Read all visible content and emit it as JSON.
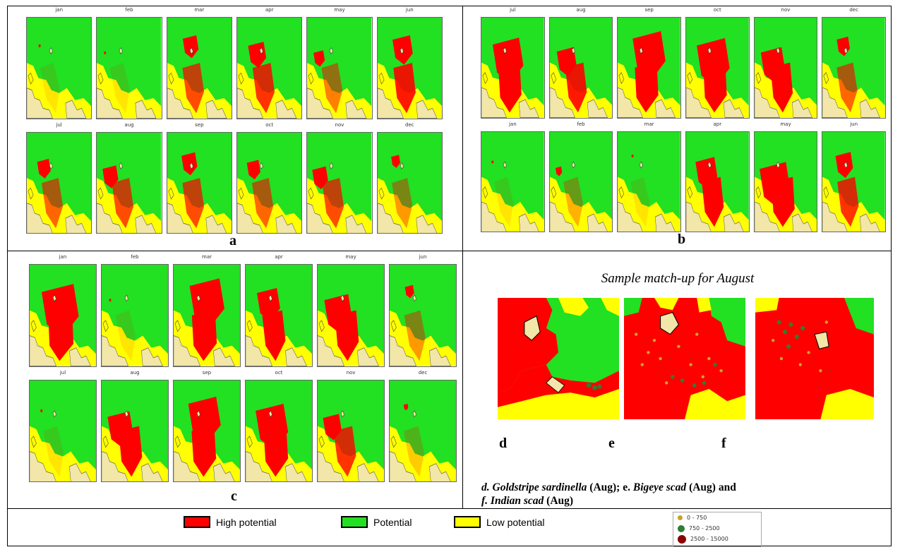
{
  "months_a": [
    "jan",
    "feb",
    "mar",
    "apr",
    "may",
    "jun",
    "jul",
    "aug",
    "sep",
    "oct",
    "nov",
    "dec"
  ],
  "months_b": [
    "jul",
    "aug",
    "sep",
    "oct",
    "nov",
    "dec",
    "jan",
    "feb",
    "mar",
    "apr",
    "may",
    "jun"
  ],
  "months_c": [
    "jan",
    "feb",
    "mar",
    "apr",
    "may",
    "jun",
    "jul",
    "aug",
    "sep",
    "oct",
    "nov",
    "dec"
  ],
  "panel_letters": {
    "a": "a",
    "b": "b",
    "c": "c",
    "d": "d",
    "e": "e",
    "f": "f"
  },
  "matchup_title": "Sample match-up for August",
  "caption": {
    "d_prefix": "d. ",
    "d_species": "Goldstripe sardinella",
    "d_suffix": " (Aug);  e. ",
    "e_species": "Bigeye scad",
    "e_suffix": " (Aug) and",
    "f_prefix": "f.  ",
    "f_species": "Indian scad",
    "f_suffix": " (Aug)"
  },
  "legend": {
    "high": "High potential",
    "potential": "Potential",
    "low": "Low potential"
  },
  "dot_legend": [
    "0 - 750",
    "750 - 2500",
    "2500 - 15000"
  ],
  "colors": {
    "high": "#ff0000",
    "potential": "#22e022",
    "low": "#ffff00",
    "land": "#f2e6a8",
    "dot_low": "#c9a227",
    "dot_mid": "#2e7d32",
    "dot_high": "#8b0000"
  },
  "potential_levels": {
    "a": [
      0.05,
      0.05,
      0.35,
      0.4,
      0.25,
      0.45,
      0.3,
      0.35,
      0.35,
      0.3,
      0.35,
      0.2
    ],
    "b": [
      0.7,
      0.45,
      0.75,
      0.75,
      0.55,
      0.3,
      0.05,
      0.15,
      0.05,
      0.5,
      0.7,
      0.4
    ],
    "c": [
      0.8,
      0.05,
      0.75,
      0.5,
      0.6,
      0.2,
      0.05,
      0.55,
      0.7,
      0.7,
      0.4,
      0.1
    ]
  }
}
